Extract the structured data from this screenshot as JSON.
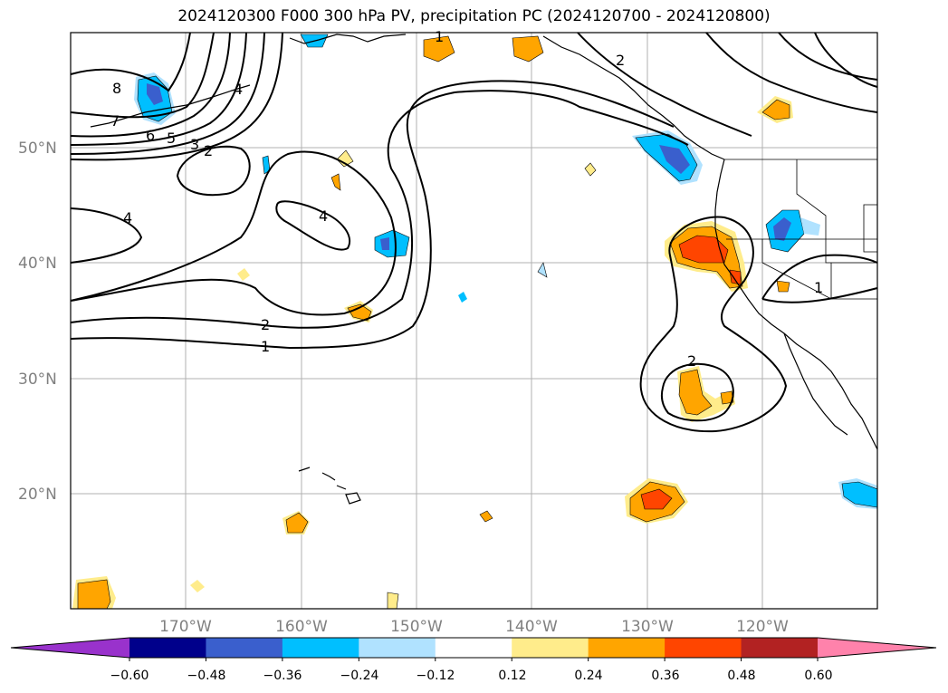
{
  "title": "2024120300 F000 300 hPa PV, precipitation PC (2024120700 - 2024120800)",
  "lat_labels": [
    "50°N",
    "40°N",
    "30°N",
    "20°N"
  ],
  "lon_labels": [
    "170°W",
    "160°W",
    "150°W",
    "140°W",
    "130°W",
    "120°W"
  ],
  "contour_labels": [
    "8",
    "7",
    "6",
    "5",
    "3",
    "2",
    "4",
    "4",
    "4",
    "2",
    "1",
    "2",
    "2",
    "1",
    "1"
  ],
  "colorbar": {
    "tick_labels": [
      "−0.60",
      "−0.48",
      "−0.36",
      "−0.24",
      "−0.12",
      "0.12",
      "0.24",
      "0.36",
      "0.48",
      "0.60"
    ],
    "colors": [
      "#9932cc",
      "#00008b",
      "#3a5fcd",
      "#00bfff",
      "#b0e2ff",
      "#ffffff",
      "#ffec8b",
      "#ffa500",
      "#ff4500",
      "#b22222",
      "#ff82ab"
    ]
  },
  "colors": {
    "grid": "#b0b0b0",
    "contour": "#000000",
    "coast": "#000000"
  }
}
